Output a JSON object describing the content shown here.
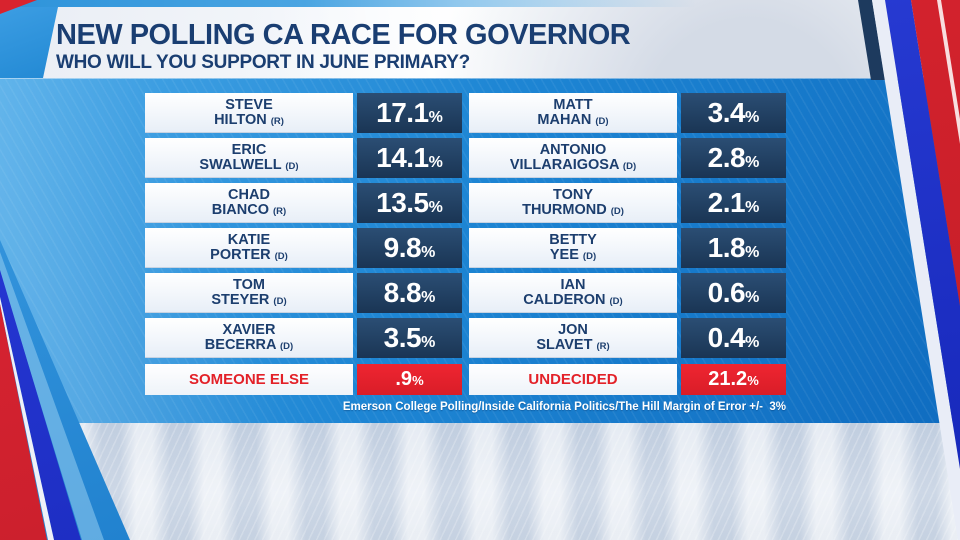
{
  "header": {
    "title": "NEW POLLING CA RACE FOR GOVERNOR",
    "subtitle": "WHO WILL YOU SUPPORT IN JUNE PRIMARY?"
  },
  "table": {
    "left_column": [
      {
        "first": "STEVE",
        "last": "HILTON",
        "party": "(R)",
        "pct": "17.1"
      },
      {
        "first": "ERIC",
        "last": "SWALWELL",
        "party": "(D)",
        "pct": "14.1"
      },
      {
        "first": "CHAD",
        "last": "BIANCO",
        "party": "(R)",
        "pct": "13.5"
      },
      {
        "first": "KATIE",
        "last": "PORTER",
        "party": "(D)",
        "pct": "9.8"
      },
      {
        "first": "TOM",
        "last": "STEYER",
        "party": "(D)",
        "pct": "8.8"
      },
      {
        "first": "XAVIER",
        "last": "BECERRA",
        "party": "(D)",
        "pct": "3.5"
      }
    ],
    "right_column": [
      {
        "first": "MATT",
        "last": "MAHAN",
        "party": "(D)",
        "pct": "3.4"
      },
      {
        "first": "ANTONIO",
        "last": "VILLARAIGOSA",
        "party": "(D)",
        "pct": "2.8"
      },
      {
        "first": "TONY",
        "last": "THURMOND",
        "party": "(D)",
        "pct": "2.1"
      },
      {
        "first": "BETTY",
        "last": "YEE",
        "party": "(D)",
        "pct": "1.8"
      },
      {
        "first": "IAN",
        "last": "CALDERON",
        "party": "(D)",
        "pct": "0.6"
      },
      {
        "first": "JON",
        "last": "SLAVET",
        "party": "(R)",
        "pct": "0.4"
      }
    ],
    "footer_rows": [
      {
        "label": "SOMEONE ELSE",
        "pct": ".9"
      },
      {
        "label": "UNDECIDED",
        "pct": "21.2"
      }
    ]
  },
  "symbols": {
    "percent": "%"
  },
  "source_line": "Emerson College Polling/Inside California Politics/The Hill Margin of Error +/-  3%",
  "colors": {
    "panel_blue": "#1e86d4",
    "navy_cell": "#1f4065",
    "title_navy": "#1a3e72",
    "red_accent": "#e3202a",
    "royal_stripe": "#2032cf"
  },
  "chart_data": {
    "type": "table",
    "title": "NEW POLLING CA RACE FOR GOVERNOR",
    "subtitle": "WHO WILL YOU SUPPORT IN JUNE PRIMARY?",
    "unit": "%",
    "categories": [
      "STEVE HILTON (R)",
      "ERIC SWALWELL (D)",
      "CHAD BIANCO (R)",
      "KATIE PORTER (D)",
      "TOM STEYER (D)",
      "XAVIER BECERRA (D)",
      "MATT MAHAN (D)",
      "ANTONIO VILLARAIGOSA (D)",
      "TONY THURMOND (D)",
      "BETTY YEE (D)",
      "IAN CALDERON (D)",
      "JON SLAVET (R)",
      "SOMEONE ELSE",
      "UNDECIDED"
    ],
    "values": [
      17.1,
      14.1,
      13.5,
      9.8,
      8.8,
      3.5,
      3.4,
      2.8,
      2.1,
      1.8,
      0.6,
      0.4,
      0.9,
      21.2
    ],
    "source": "Emerson College Polling/Inside California Politics/The Hill Margin of Error +/- 3%"
  }
}
